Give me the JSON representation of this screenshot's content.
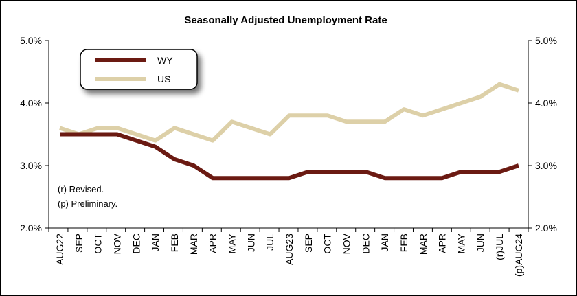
{
  "chart_data": {
    "type": "line",
    "title": "Seasonally Adjusted Unemployment Rate",
    "categories": [
      "AUG22",
      "SEP",
      "OCT",
      "NOV",
      "DEC",
      "JAN",
      "FEB",
      "MAR",
      "APR",
      "MAY",
      "JUN",
      "JUL",
      "AUG23",
      "SEP",
      "OCT",
      "NOV",
      "DEC",
      "JAN",
      "FEB",
      "MAR",
      "APR",
      "MAY",
      "JUN",
      "(r)JUL",
      "(p)AUG24"
    ],
    "series": [
      {
        "name": "WY",
        "color": "#6b1a12",
        "values": [
          3.5,
          3.5,
          3.5,
          3.5,
          3.4,
          3.3,
          3.1,
          3.0,
          2.8,
          2.8,
          2.8,
          2.8,
          2.8,
          2.9,
          2.9,
          2.9,
          2.9,
          2.8,
          2.8,
          2.8,
          2.8,
          2.9,
          2.9,
          2.9,
          3.0
        ]
      },
      {
        "name": "US",
        "color": "#ddd0a8",
        "values": [
          3.6,
          3.5,
          3.6,
          3.6,
          3.5,
          3.4,
          3.6,
          3.5,
          3.4,
          3.7,
          3.6,
          3.5,
          3.8,
          3.8,
          3.8,
          3.7,
          3.7,
          3.7,
          3.9,
          3.8,
          3.9,
          4.0,
          4.1,
          4.3,
          4.2
        ]
      }
    ],
    "ylim": [
      2.0,
      5.0
    ],
    "yticks": [
      "2.0%",
      "3.0%",
      "4.0%",
      "5.0%"
    ],
    "ytick_values": [
      2.0,
      3.0,
      4.0,
      5.0
    ],
    "dual_y_axis": true,
    "grid": false,
    "legend_position": "top-left",
    "notes": [
      "(r) Revised.",
      "(p) Preliminary."
    ]
  }
}
